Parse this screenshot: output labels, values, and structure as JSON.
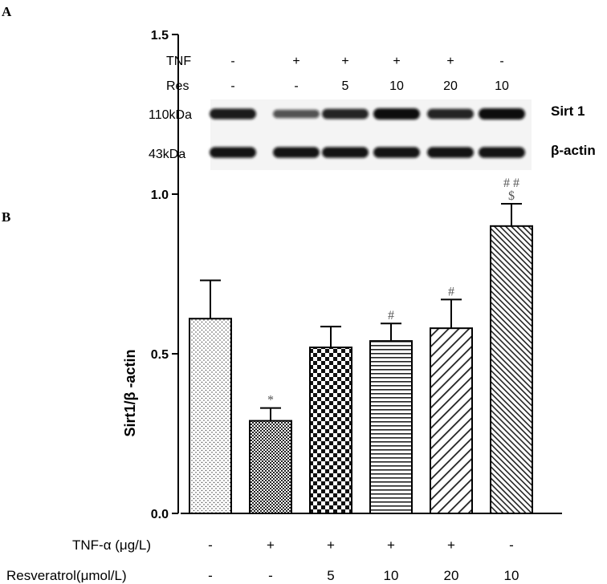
{
  "panel_a": {
    "label": "A",
    "rows": [
      {
        "label": "TNF",
        "values": [
          "-",
          "+",
          "+",
          "+",
          "+",
          "-"
        ]
      },
      {
        "label": "Res",
        "values": [
          "-",
          "-",
          "5",
          "10",
          "20",
          "10"
        ]
      }
    ],
    "blots": [
      {
        "mw": "110kDa",
        "protein": "Sirt 1",
        "intensity": [
          0.9,
          0.55,
          0.85,
          1.0,
          0.85,
          1.0
        ]
      },
      {
        "mw": "43kDa",
        "protein": "β-actin",
        "intensity": [
          0.95,
          0.95,
          0.95,
          0.95,
          0.95,
          0.95
        ]
      }
    ]
  },
  "panel_b": {
    "label": "B"
  },
  "chart_data": {
    "type": "bar",
    "ylabel": "Sirt1/β -actin",
    "ylim": [
      0,
      1.5
    ],
    "yticks": [
      "0.0",
      "0.5",
      "1.0",
      "1.5"
    ],
    "values": [
      0.61,
      0.29,
      0.52,
      0.54,
      0.58,
      0.9
    ],
    "errors": [
      0.12,
      0.04,
      0.065,
      0.055,
      0.09,
      0.07
    ],
    "annotations": [
      [],
      [
        "*"
      ],
      [],
      [
        "#"
      ],
      [
        "#"
      ],
      [
        "# #",
        "$"
      ]
    ],
    "patterns": [
      "dots",
      "checker-fine",
      "checker-coarse",
      "horizontal-lines",
      "diagonal-sparse",
      "diagonal-dense"
    ],
    "condition_rows": [
      {
        "label": "TNF-α (μg/L)",
        "values": [
          "-",
          "+",
          "+",
          "+",
          "+",
          "-"
        ]
      },
      {
        "label": "Resveratrol(μmol/L)",
        "values": [
          "-",
          "-",
          "5",
          "10",
          "20",
          "10"
        ]
      }
    ]
  }
}
